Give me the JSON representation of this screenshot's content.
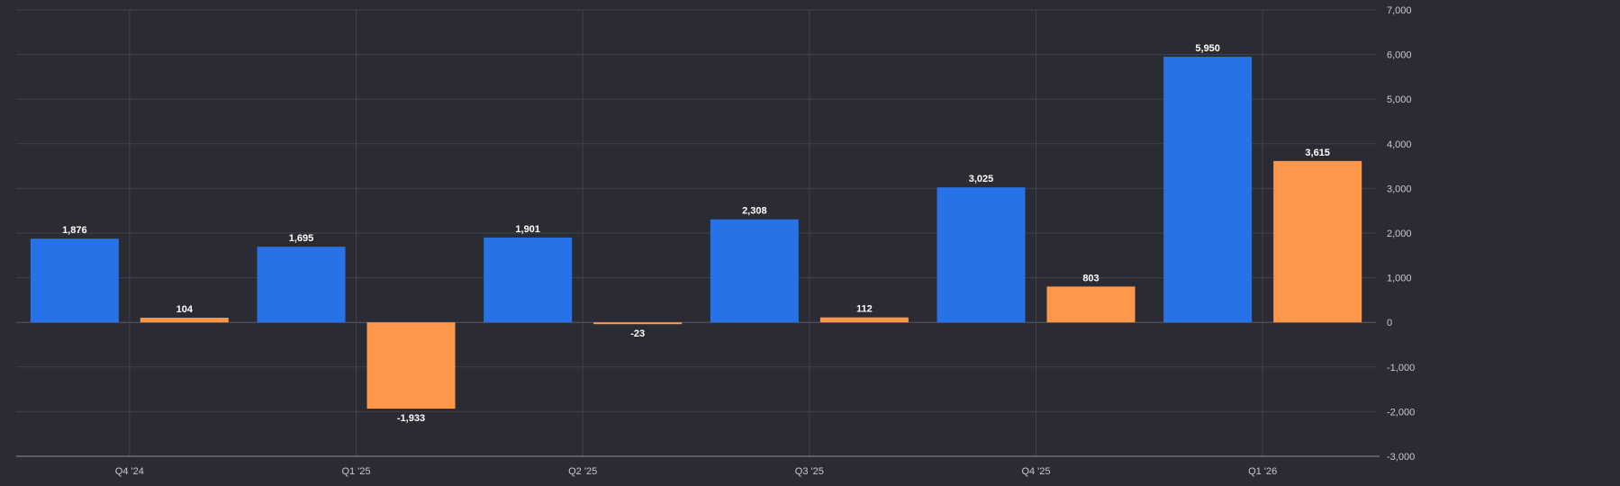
{
  "chart_data": {
    "type": "bar",
    "categories": [
      "Q4 '24",
      "Q1 '25",
      "Q2 '25",
      "Q3 '25",
      "Q4 '25",
      "Q1 '26"
    ],
    "series": [
      {
        "values": [
          1876,
          1695,
          1901,
          2308,
          3025,
          5950
        ],
        "color": "#2872e8"
      },
      {
        "values": [
          104,
          -1933,
          -23,
          112,
          803,
          3615
        ],
        "color": "#ff974a"
      }
    ],
    "data_labels": [
      [
        "1,876",
        "1,695",
        "1,901",
        "2,308",
        "3,025",
        "5,950"
      ],
      [
        "104",
        "-1,933",
        "-23",
        "112",
        "803",
        "3,615"
      ]
    ],
    "ylim": [
      -3000,
      7000
    ],
    "y_ticks": [
      7000,
      6000,
      5000,
      4000,
      3000,
      2000,
      1000,
      0,
      -1000,
      -2000,
      -3000
    ],
    "y_tick_labels": [
      "7,000",
      "6,000",
      "5,000",
      "4,000",
      "3,000",
      "2,000",
      "1,000",
      "0",
      "-1,000",
      "-2,000",
      "-3,000"
    ],
    "y_axis_position": "right",
    "grid": true,
    "legend": false,
    "title": "",
    "xlabel": "",
    "ylabel": ""
  }
}
